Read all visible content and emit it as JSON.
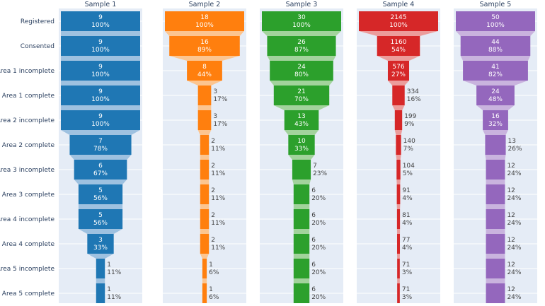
{
  "chart_data": {
    "type": "funnel",
    "stages": [
      "Registered",
      "Consented",
      "Area 1 incomplete",
      "Area 1 complete",
      "Area 2 incomplete",
      "Area 2 complete",
      "Area 3 incomplete",
      "Area 3 complete",
      "Area 4 incomplete",
      "Area 4 complete",
      "Area 5 incomplete",
      "Area 5 complete"
    ],
    "panels": [
      {
        "title": "Sample 1",
        "color": "#1f77b4",
        "connector_color": "#9ec1e0",
        "values": [
          9,
          9,
          9,
          9,
          9,
          7,
          6,
          5,
          5,
          3,
          1,
          1
        ],
        "percents": [
          "100%",
          "100%",
          "100%",
          "100%",
          "100%",
          "78%",
          "67%",
          "56%",
          "56%",
          "33%",
          "11%",
          "11%"
        ]
      },
      {
        "title": "Sample 2",
        "color": "#ff7f0e",
        "connector_color": "#fcc590",
        "values": [
          18,
          16,
          8,
          3,
          3,
          2,
          2,
          2,
          2,
          2,
          1,
          1
        ],
        "percents": [
          "100%",
          "89%",
          "44%",
          "17%",
          "17%",
          "11%",
          "11%",
          "11%",
          "11%",
          "11%",
          "6%",
          "6%"
        ]
      },
      {
        "title": "Sample 3",
        "color": "#2ca02c",
        "connector_color": "#a2d39c",
        "values": [
          30,
          26,
          24,
          21,
          13,
          10,
          7,
          6,
          6,
          6,
          6,
          6
        ],
        "percents": [
          "100%",
          "87%",
          "80%",
          "70%",
          "43%",
          "33%",
          "23%",
          "20%",
          "20%",
          "20%",
          "20%",
          "20%"
        ]
      },
      {
        "title": "Sample 4",
        "color": "#d62728",
        "connector_color": "#ec9c9b",
        "values": [
          2145,
          1160,
          576,
          334,
          199,
          140,
          104,
          91,
          81,
          77,
          71,
          71
        ],
        "percents": [
          "100%",
          "54%",
          "27%",
          "16%",
          "9%",
          "7%",
          "5%",
          "4%",
          "4%",
          "4%",
          "3%",
          "3%"
        ]
      },
      {
        "title": "Sample 5",
        "color": "#9467bd",
        "connector_color": "#c9b3de",
        "values": [
          50,
          44,
          41,
          24,
          16,
          13,
          12,
          12,
          12,
          12,
          12,
          12
        ],
        "percents": [
          "100%",
          "88%",
          "82%",
          "48%",
          "32%",
          "26%",
          "24%",
          "24%",
          "24%",
          "24%",
          "24%",
          "24%"
        ]
      }
    ],
    "plot_background": "#e5ecf6",
    "inside_text_color": "#ffffff",
    "outside_text_color": "#444444"
  }
}
